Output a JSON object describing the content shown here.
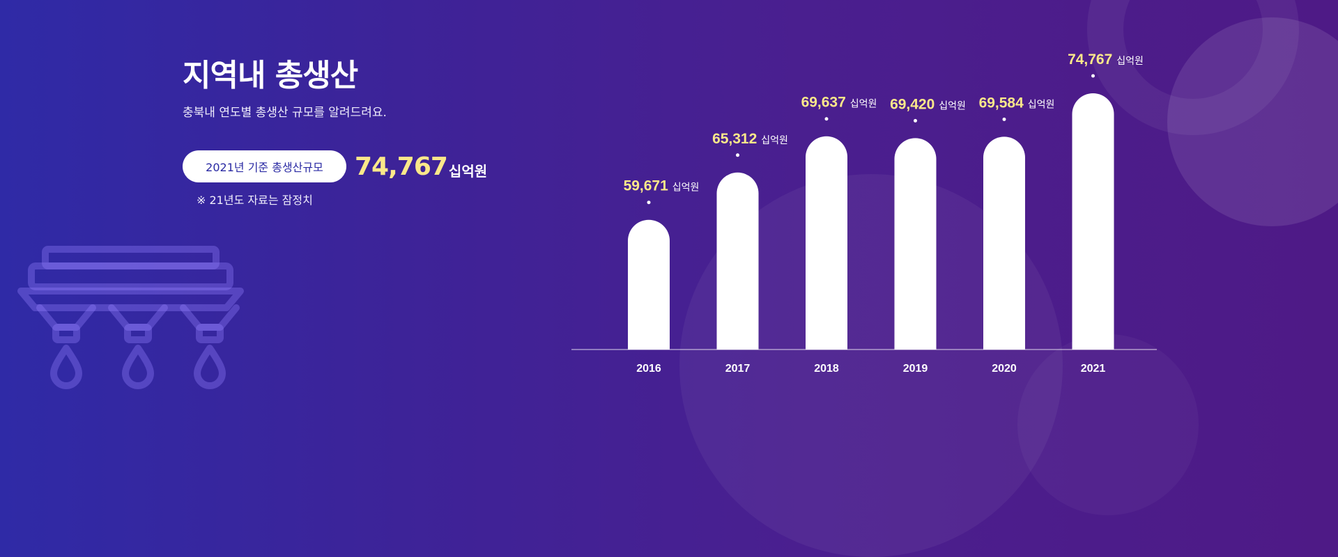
{
  "header": {
    "title": "지역내 총생산",
    "subtitle": "충북내 연도별 총생산 규모를 알려드려요."
  },
  "highlight": {
    "label": "2021년 기준 총생산규모",
    "value": "74,767",
    "unit": "십억원",
    "note": "※ 21년도 자료는 잠정치"
  },
  "chart_data": {
    "type": "bar",
    "title": "지역내 총생산",
    "categories": [
      "2016",
      "2017",
      "2018",
      "2019",
      "2020",
      "2021"
    ],
    "values": [
      59671,
      65312,
      69637,
      69420,
      69584,
      74767
    ],
    "value_labels": [
      "59,671",
      "65,312",
      "69,637",
      "69,420",
      "69,584",
      "74,767"
    ],
    "unit": "십억원",
    "xlabel": "",
    "ylabel": "",
    "grid": false,
    "legend": "none"
  },
  "colors": {
    "accent": "#fbe88a",
    "bar": "#ffffff",
    "pill_text": "#2a2aa3"
  }
}
